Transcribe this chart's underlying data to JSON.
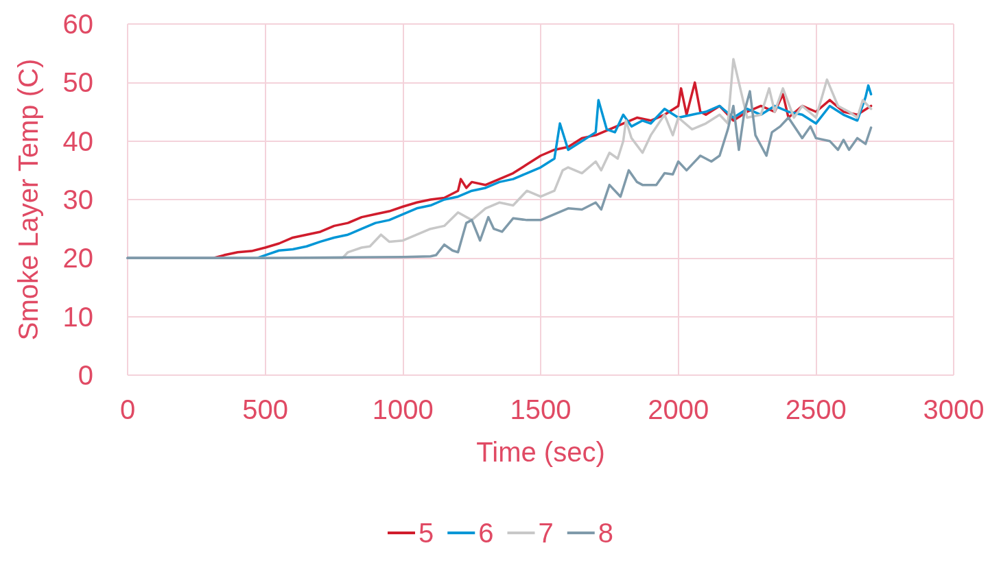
{
  "chart_data": {
    "type": "line",
    "xlabel": "Time (sec)",
    "ylabel": "Smoke Layer Temp (C)",
    "xlim": [
      0,
      3000
    ],
    "xticks": [
      0,
      500,
      1000,
      1500,
      2000,
      2500,
      3000
    ],
    "ylim": [
      0,
      60
    ],
    "yticks": [
      0,
      10,
      20,
      30,
      40,
      50,
      60
    ],
    "grid": true,
    "legend": "bottom",
    "marker": "none",
    "line_style": "solid",
    "series": [
      {
        "name": "5",
        "color": "#d01c2c",
        "x": [
          0,
          310,
          350,
          400,
          450,
          500,
          550,
          600,
          650,
          700,
          750,
          800,
          850,
          900,
          950,
          1000,
          1050,
          1100,
          1150,
          1200,
          1210,
          1230,
          1250,
          1300,
          1350,
          1400,
          1450,
          1500,
          1550,
          1600,
          1650,
          1700,
          1750,
          1800,
          1850,
          1900,
          1950,
          2000,
          2010,
          2030,
          2060,
          2080,
          2100,
          2150,
          2200,
          2250,
          2300,
          2350,
          2380,
          2400,
          2450,
          2500,
          2550,
          2600,
          2650,
          2700
        ],
        "values": [
          20,
          20,
          20.5,
          21,
          21.2,
          21.8,
          22.5,
          23.5,
          24,
          24.5,
          25.5,
          26,
          27,
          27.5,
          28,
          28.8,
          29.5,
          30,
          30.3,
          31.5,
          33.5,
          32,
          33,
          32.5,
          33.5,
          34.5,
          36,
          37.5,
          38.5,
          39,
          40.5,
          41,
          42,
          43,
          44,
          43.5,
          44.5,
          46,
          49,
          44.5,
          50,
          45,
          44.5,
          46,
          43.5,
          45,
          46,
          45,
          48,
          44,
          46,
          45,
          47,
          45,
          44.5,
          46
        ]
      },
      {
        "name": "6",
        "color": "#0096d6",
        "x": [
          0,
          470,
          500,
          550,
          600,
          650,
          700,
          750,
          800,
          850,
          900,
          950,
          1000,
          1050,
          1100,
          1150,
          1200,
          1250,
          1300,
          1350,
          1400,
          1450,
          1500,
          1550,
          1570,
          1600,
          1650,
          1700,
          1710,
          1740,
          1770,
          1800,
          1830,
          1870,
          1900,
          1950,
          2000,
          2050,
          2100,
          2150,
          2200,
          2250,
          2300,
          2350,
          2400,
          2450,
          2500,
          2550,
          2600,
          2650,
          2680,
          2690,
          2700
        ],
        "values": [
          20,
          20,
          20.5,
          21.3,
          21.5,
          22,
          22.8,
          23.5,
          24,
          25,
          26,
          26.5,
          27.5,
          28.5,
          29,
          30,
          30.5,
          31.5,
          32,
          33,
          33.5,
          34.5,
          35.5,
          37,
          43,
          38.5,
          40,
          41.5,
          47,
          42,
          41.5,
          44.5,
          42.5,
          43.5,
          43,
          45.5,
          44,
          44.5,
          45,
          46,
          44,
          45.5,
          44.5,
          46,
          45,
          44.5,
          43,
          46,
          44.5,
          43.5,
          47.5,
          49.5,
          48
        ]
      },
      {
        "name": "7",
        "color": "#c8c8c8",
        "x": [
          0,
          780,
          800,
          850,
          880,
          900,
          920,
          950,
          1000,
          1050,
          1100,
          1150,
          1200,
          1250,
          1300,
          1350,
          1400,
          1450,
          1500,
          1550,
          1580,
          1600,
          1650,
          1700,
          1720,
          1750,
          1780,
          1800,
          1810,
          1830,
          1870,
          1900,
          1950,
          1980,
          2000,
          2050,
          2100,
          2150,
          2180,
          2200,
          2220,
          2250,
          2300,
          2330,
          2350,
          2380,
          2420,
          2450,
          2500,
          2540,
          2580,
          2620,
          2650,
          2670,
          2700
        ],
        "values": [
          20,
          20,
          21,
          21.8,
          22,
          23,
          24,
          22.8,
          23,
          24,
          25,
          25.5,
          27.8,
          26.5,
          28.5,
          29.5,
          29,
          31.5,
          30.5,
          31.5,
          35,
          35.5,
          34.5,
          36.5,
          35,
          38,
          37,
          40,
          43.5,
          40.5,
          38,
          41,
          44.5,
          41,
          44,
          42,
          43,
          44.5,
          43,
          54,
          50,
          44,
          44.5,
          49,
          45,
          49,
          44,
          46,
          44,
          50.5,
          46,
          45,
          44,
          47,
          45.5
        ]
      },
      {
        "name": "8",
        "color": "#7f9aaa",
        "x": [
          0,
          500,
          1000,
          1100,
          1120,
          1150,
          1180,
          1200,
          1230,
          1250,
          1280,
          1310,
          1330,
          1360,
          1400,
          1450,
          1500,
          1550,
          1600,
          1650,
          1700,
          1720,
          1750,
          1790,
          1820,
          1850,
          1870,
          1920,
          1950,
          1980,
          2000,
          2030,
          2080,
          2120,
          2150,
          2180,
          2200,
          2220,
          2240,
          2260,
          2280,
          2320,
          2340,
          2370,
          2400,
          2450,
          2480,
          2500,
          2550,
          2580,
          2600,
          2620,
          2650,
          2680,
          2700
        ],
        "values": [
          20,
          20,
          20.2,
          20.3,
          20.5,
          22.3,
          21.3,
          21,
          26,
          26.5,
          23,
          27,
          25,
          24.5,
          26.8,
          26.5,
          26.5,
          27.5,
          28.5,
          28.3,
          29.5,
          28.3,
          32.5,
          30.5,
          35,
          33,
          32.5,
          32.5,
          34.5,
          34.3,
          36.5,
          35,
          37.5,
          36.5,
          37.5,
          42,
          46,
          38.5,
          45,
          48.5,
          41,
          37.5,
          41.5,
          42.5,
          44,
          40.5,
          42.5,
          40.5,
          40,
          38.5,
          40.2,
          38.5,
          40.5,
          39.5,
          42.3
        ]
      }
    ]
  }
}
